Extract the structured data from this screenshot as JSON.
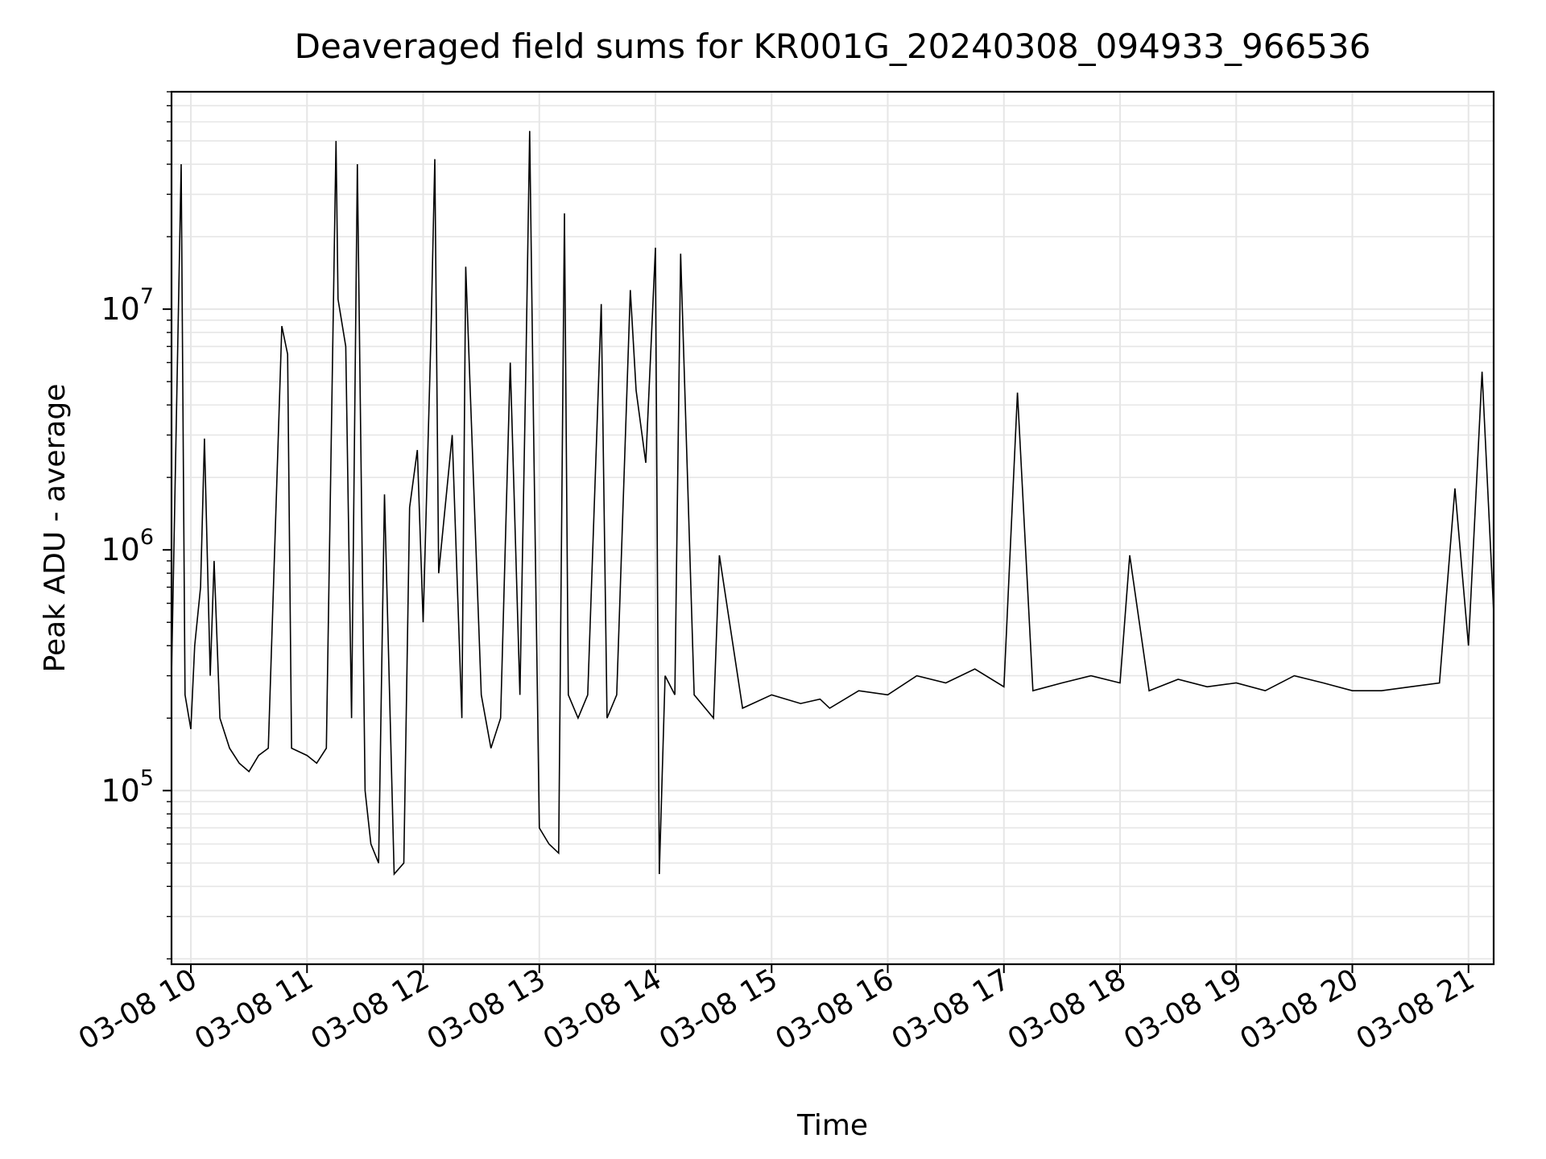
{
  "chart_data": {
    "type": "line",
    "title": "Deaveraged field sums for KR001G_20240308_094933_966536",
    "xlabel": "Time",
    "ylabel": "Peak ADU - average",
    "yscale": "log",
    "grid": true,
    "grid_color": "#e6e6e6",
    "line_color": "#000000",
    "xlim": [
      "2024-03-08 09:50",
      "2024-03-08 21:13"
    ],
    "ylim": [
      19000,
      80000000
    ],
    "xticks": [
      {
        "value": "2024-03-08 10:00",
        "label": "03-08 10"
      },
      {
        "value": "2024-03-08 11:00",
        "label": "03-08 11"
      },
      {
        "value": "2024-03-08 12:00",
        "label": "03-08 12"
      },
      {
        "value": "2024-03-08 13:00",
        "label": "03-08 13"
      },
      {
        "value": "2024-03-08 14:00",
        "label": "03-08 14"
      },
      {
        "value": "2024-03-08 15:00",
        "label": "03-08 15"
      },
      {
        "value": "2024-03-08 16:00",
        "label": "03-08 16"
      },
      {
        "value": "2024-03-08 17:00",
        "label": "03-08 17"
      },
      {
        "value": "2024-03-08 18:00",
        "label": "03-08 18"
      },
      {
        "value": "2024-03-08 19:00",
        "label": "03-08 19"
      },
      {
        "value": "2024-03-08 20:00",
        "label": "03-08 20"
      },
      {
        "value": "2024-03-08 21:00",
        "label": "03-08 21"
      }
    ],
    "yticks": [
      {
        "value": 100000,
        "base": "10",
        "exponent": "5"
      },
      {
        "value": 1000000,
        "base": "10",
        "exponent": "6"
      },
      {
        "value": 10000000,
        "base": "10",
        "exponent": "7"
      }
    ],
    "series": [
      {
        "x": [
          "2024-03-08 09:50",
          "2024-03-08 09:55",
          "2024-03-08 09:57",
          "2024-03-08 10:00",
          "2024-03-08 10:02",
          "2024-03-08 10:05",
          "2024-03-08 10:07",
          "2024-03-08 10:10",
          "2024-03-08 10:12",
          "2024-03-08 10:15",
          "2024-03-08 10:20",
          "2024-03-08 10:25",
          "2024-03-08 10:30",
          "2024-03-08 10:35",
          "2024-03-08 10:40",
          "2024-03-08 10:47",
          "2024-03-08 10:50",
          "2024-03-08 10:52",
          "2024-03-08 11:00",
          "2024-03-08 11:05",
          "2024-03-08 11:10",
          "2024-03-08 11:15",
          "2024-03-08 11:16",
          "2024-03-08 11:20",
          "2024-03-08 11:23",
          "2024-03-08 11:26",
          "2024-03-08 11:30",
          "2024-03-08 11:33",
          "2024-03-08 11:37",
          "2024-03-08 11:40",
          "2024-03-08 11:45",
          "2024-03-08 11:50",
          "2024-03-08 11:53",
          "2024-03-08 11:57",
          "2024-03-08 12:00",
          "2024-03-08 12:04",
          "2024-03-08 12:06",
          "2024-03-08 12:08",
          "2024-03-08 12:15",
          "2024-03-08 12:20",
          "2024-03-08 12:22",
          "2024-03-08 12:30",
          "2024-03-08 12:35",
          "2024-03-08 12:40",
          "2024-03-08 12:45",
          "2024-03-08 12:50",
          "2024-03-08 12:53",
          "2024-03-08 12:55",
          "2024-03-08 12:57",
          "2024-03-08 13:00",
          "2024-03-08 13:05",
          "2024-03-08 13:10",
          "2024-03-08 13:13",
          "2024-03-08 13:15",
          "2024-03-08 13:20",
          "2024-03-08 13:25",
          "2024-03-08 13:32",
          "2024-03-08 13:35",
          "2024-03-08 13:40",
          "2024-03-08 13:47",
          "2024-03-08 13:50",
          "2024-03-08 13:55",
          "2024-03-08 14:00",
          "2024-03-08 14:02",
          "2024-03-08 14:05",
          "2024-03-08 14:10",
          "2024-03-08 14:13",
          "2024-03-08 14:20",
          "2024-03-08 14:30",
          "2024-03-08 14:33",
          "2024-03-08 14:45",
          "2024-03-08 15:00",
          "2024-03-08 15:15",
          "2024-03-08 15:25",
          "2024-03-08 15:30",
          "2024-03-08 15:45",
          "2024-03-08 16:00",
          "2024-03-08 16:15",
          "2024-03-08 16:30",
          "2024-03-08 16:45",
          "2024-03-08 17:00",
          "2024-03-08 17:07",
          "2024-03-08 17:15",
          "2024-03-08 17:30",
          "2024-03-08 17:45",
          "2024-03-08 18:00",
          "2024-03-08 18:05",
          "2024-03-08 18:15",
          "2024-03-08 18:30",
          "2024-03-08 18:45",
          "2024-03-08 19:00",
          "2024-03-08 19:15",
          "2024-03-08 19:30",
          "2024-03-08 19:45",
          "2024-03-08 20:00",
          "2024-03-08 20:15",
          "2024-03-08 20:30",
          "2024-03-08 20:45",
          "2024-03-08 20:53",
          "2024-03-08 21:00",
          "2024-03-08 21:07",
          "2024-03-08 21:13"
        ],
        "values": [
          300000,
          40000000,
          250000,
          180000,
          400000,
          700000,
          2900000,
          300000,
          900000,
          200000,
          150000,
          130000,
          120000,
          140000,
          150000,
          8500000,
          6500000,
          150000,
          140000,
          130000,
          150000,
          50000000,
          11000000,
          7000000,
          200000,
          40000000,
          100000,
          60000,
          50000,
          1700000,
          45000,
          50000,
          1500000,
          2600000,
          500000,
          7500000,
          42000000,
          800000,
          3000000,
          200000,
          15000000,
          250000,
          150000,
          200000,
          6000000,
          250000,
          5500000,
          55000000,
          3300000,
          70000,
          60000,
          55000,
          25000000,
          250000,
          200000,
          250000,
          10500000,
          200000,
          250000,
          12000000,
          4600000,
          2300000,
          18000000,
          45000,
          300000,
          250000,
          17000000,
          250000,
          200000,
          950000,
          220000,
          250000,
          230000,
          240000,
          220000,
          260000,
          250000,
          300000,
          280000,
          320000,
          270000,
          4500000,
          260000,
          280000,
          300000,
          280000,
          950000,
          260000,
          290000,
          270000,
          280000,
          260000,
          300000,
          280000,
          260000,
          260000,
          270000,
          280000,
          1800000,
          400000,
          5500000,
          550000
        ]
      }
    ]
  }
}
